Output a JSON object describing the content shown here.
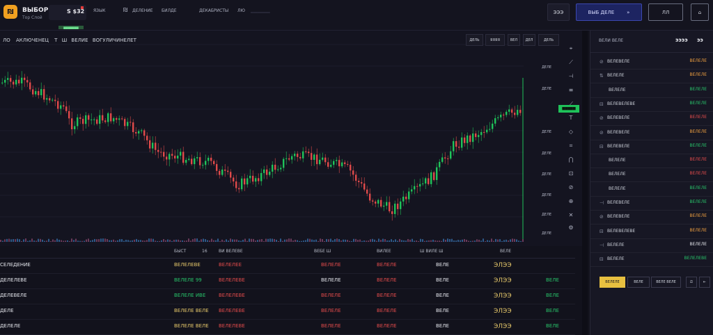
{
  "header": {
    "brand_title": "ВЫБОР",
    "brand_sub": "Тор Слой",
    "ticker_label": "S $32",
    "ticker_badge": "▆▆▆▆▆▆▆",
    "nav": [
      "ЯЗЫК",
      "ДЕЛЕНИЕ",
      "БИЛДЕ",
      "ДЕКАБРИСТЫ",
      "ЛЮ",
      "▁▁▁▁▁▁"
    ],
    "nav_icon": "₪",
    "btn_reports": "ЭЭЭ",
    "btn_main": "ВЫБ ДЕЛЕ",
    "btn_main_icon": "»",
    "btn_user": "ЛЛ",
    "btn_user_icon": "⌂"
  },
  "chart": {
    "title_parts": [
      "ЛО",
      "АКЛЮЧЕНЕЦ",
      "Т",
      "Ш",
      "ВЕЛИЕ",
      "ВОГУЛИЧИНЕЛЕТ"
    ],
    "buttons": [
      "ДЕЛЬ",
      "ЯЯЯЯ",
      "ВЕЛ",
      "ДЕЛ"
    ],
    "price_labels": [
      "ДЕЛЕ",
      "ДЕЛЕ",
      "ДЕЛЕ",
      "ДЕЛЕ",
      "ДЕЛЕ",
      "ДЕЛЕ",
      "ДЕЛЕ",
      "ДЕЛЕ"
    ],
    "current_price": "▆▆▆▆▆"
  },
  "table": {
    "headers": [
      "БЫСТ",
      "16",
      "ВИ ВЕЛЕВЕ",
      "ВЕБЕ Ш",
      "ВИЛЕЕ",
      "Ш ВИЛЕ Ш",
      "ВЕЛЕ"
    ],
    "rows": [
      {
        "name": "СЕЛЕДЕНИЕ",
        "c1": "ВЕЛЕЛЕВЕ",
        "c2": "ВЕЛЕЛЕЕ",
        "c3": "ВЕЛЕЛЕ",
        "c4": "ВЕЛЕЛЕ",
        "c5": "ВЕЛЕ",
        "c6": "ЭЛЭЭ",
        "c7": ""
      },
      {
        "name": "ДЕЛЕЛЕВЕ",
        "c1": "ВЕЛЕЛЕ 99",
        "c2": "ВЕЛЕЛЕВЕ",
        "c3": "ВЕЛЕЛЕ",
        "c4": "ВЕЛЕЛЕ",
        "c5": "ВЕЛЕ",
        "c6": "ЭЛЭЭ",
        "c7": "ВЕЛЕ"
      },
      {
        "name": "ДЕЛЕВЕЛЕ",
        "c1": "ВЕЛЕЛЕ ИВЕ",
        "c2": "ВЕЛЕЛЕВЕ",
        "c3": "ВЕЛЕЛЕ",
        "c4": "ВЕЛЕЛЕ",
        "c5": "ВЕЛЕ",
        "c6": "ЭЛЭЭ",
        "c7": "ВЕЛЕ"
      },
      {
        "name": "ДЕЛЕ",
        "c1": "ВЕЛЕЛЕ ВЕЛЕ",
        "c2": "ВЕЛЕЛЕВЕ",
        "c3": "ВЕЛЕЛЕ",
        "c4": "ВЕЛЕЛЕ",
        "c5": "ВЕЛЕ",
        "c6": "ЭЛЭЭ",
        "c7": "ВЕЛЕ"
      },
      {
        "name": "ДЕЛЕЛЕ",
        "c1": "ВЕЛЕЛЕ ВЕЛЕ",
        "c2": "ВЕЛЕЛЕВЕ",
        "c3": "ВЕЛЕЛЕ",
        "c4": "ВЕЛЕЛЕ",
        "c5": "ВЕЛЕ",
        "c6": "ЭЛЭЭ",
        "c7": "ВЕЛЕ"
      }
    ]
  },
  "sidebar": {
    "head_left": "ВЕЛИ ВЕЛЕ",
    "head_mid": "ЭЭЭЭ",
    "head_right": "ЭЭ",
    "rows": [
      {
        "icon": "⊘",
        "label": "ВЕЛЕВЕЛЕ",
        "value": "ВЕЛЕЛЕ",
        "color": "orange"
      },
      {
        "icon": "⇅",
        "label": "ВЕЛЕЛЕ",
        "value": "ВЕЛЕЛЕ",
        "color": "orange"
      },
      {
        "icon": "",
        "label": "ВЕЛЕЛЕ",
        "value": "ВЕЛЕЛЕ",
        "color": "green"
      },
      {
        "icon": "⊟",
        "label": "ВЕЛЕВЕЛЕВЕ",
        "value": "ВЕЛЕЛЕ",
        "color": "green"
      },
      {
        "icon": "⊘",
        "label": "ВЕЛЕВЕЛЕ",
        "value": "ВЕЛЕЛЕ",
        "color": "red"
      },
      {
        "icon": "⊘",
        "label": "ВЕЛЕВЕЛЕ",
        "value": "ВЕЛЕЛЕ",
        "color": "orange"
      },
      {
        "icon": "⊟",
        "label": "ВЕЛЕВЕЛЕ",
        "value": "ВЕЛЕЛЕ",
        "color": "green"
      },
      {
        "icon": "",
        "label": "ВЕЛЕЛЕ",
        "value": "ВЕЛЕЛЕ",
        "color": "red"
      },
      {
        "icon": "",
        "label": "ВЕЛЕЛЕ",
        "value": "ВЕЛЕЛЕ",
        "color": "red"
      },
      {
        "icon": "",
        "label": "ВЕЛЕЛЕ",
        "value": "ВЕЛЕЛЕ",
        "color": "green"
      },
      {
        "icon": "⊣",
        "label": "ВЕЛЕВЕЛЕ",
        "value": "ВЕЛЕЛЕ",
        "color": "green"
      },
      {
        "icon": "⊘",
        "label": "ВЕЛЕВЕЛЕ",
        "value": "ВЕЛЕЛЕ",
        "color": "orange"
      },
      {
        "icon": "⊟",
        "label": "ВЕЛЕВЕЛЕВЕ",
        "value": "ВЕЛЕЛЕ",
        "color": "orange"
      },
      {
        "icon": "⊣",
        "label": "ВЕЛЕЛЕ",
        "value": "ВЕЛЕЛЕ",
        "color": "white"
      },
      {
        "icon": "⊟",
        "label": "ВЕЛЕЛЕ",
        "value": "ВЕЛЕЛЕВЕ",
        "color": "green"
      }
    ],
    "footer_buttons": [
      "ВЕЛЕЛЕ",
      "ВЕЛЕ",
      "ВЕЛЕ ВЕЛЕ"
    ],
    "footer_icons": [
      "⎚",
      "⇤"
    ]
  }
}
